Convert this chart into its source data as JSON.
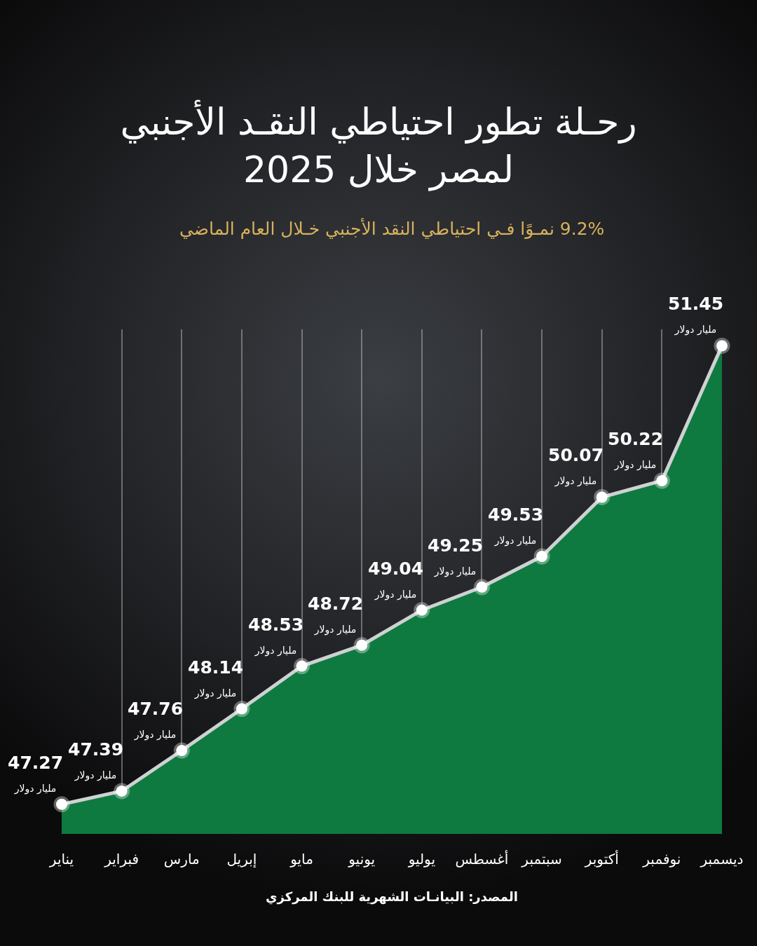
{
  "chart_data": {
    "type": "area",
    "title": "رحـلة تطور احتياطي النقـد الأجنبي\nلمصر خلال 2025",
    "subtitle": "9.2% نمـوًا فـي احتياطي النقد الأجنبي خـلال العام الماضي",
    "annotations": [
      "المصدر: البيانـات الشهرية للبنك المركزي"
    ],
    "categories": [
      "يناير",
      "فبراير",
      "مارس",
      "إبريل",
      "مايو",
      "يونيو",
      "يوليو",
      "أغسطس",
      "سبتمبر",
      "أكتوبر",
      "نوفمبر",
      "ديسمبر"
    ],
    "values": [
      47.27,
      47.39,
      47.76,
      48.14,
      48.53,
      48.72,
      49.04,
      49.25,
      49.53,
      50.07,
      50.22,
      51.45
    ],
    "value_labels": [
      "47.27\nمليار دولار",
      "47.39\nمليار دولار",
      "47.76\nمليار دولار",
      "48.14\nمليار دولار",
      "48.53\nمليار دولار",
      "48.72\nمليار دولار",
      "49.04\nمليار دولار",
      "49.25\nمليار دولار",
      "49.53\nمليار دولار",
      "50.07\nمليار دولار",
      "50.22\nمليار دولار",
      "51.45\nمليار دولار"
    ],
    "color": "#0f7a40",
    "ylim": [
      47,
      51.6
    ],
    "grid": "x",
    "tick_labels": "x",
    "marker": "circle",
    "line_style": "solid"
  }
}
